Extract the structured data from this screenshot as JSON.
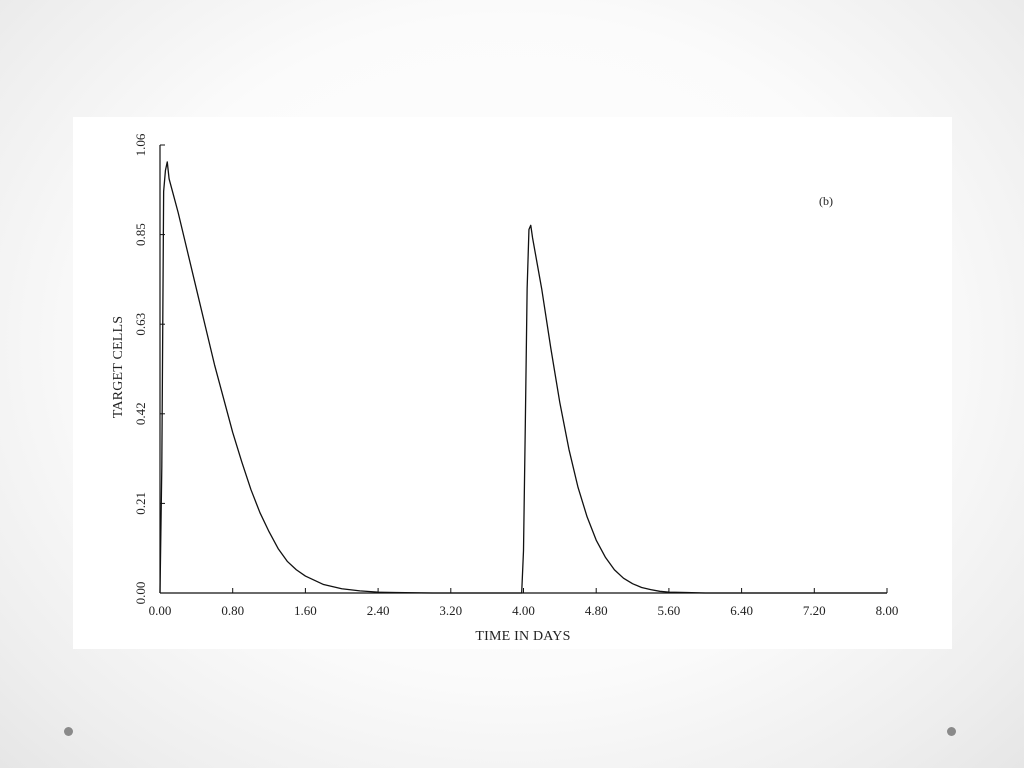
{
  "chart_data": {
    "type": "line",
    "panel_label": "(b)",
    "xlabel": "TIME IN DAYS",
    "ylabel": "TARGET CELLS",
    "xlim": [
      0,
      8
    ],
    "ylim": [
      0,
      1.06
    ],
    "x_ticks": [
      "0.00",
      "0.80",
      "1.60",
      "2.40",
      "3.20",
      "4.00",
      "4.80",
      "5.60",
      "6.40",
      "7.20",
      "8.00"
    ],
    "y_ticks": [
      "0.00",
      "0.21",
      "0.42",
      "0.63",
      "0.85",
      "1.06"
    ],
    "grid": false,
    "legend": "none",
    "series": [
      {
        "x": [
          0.0,
          0.02,
          0.04,
          0.06,
          0.08,
          0.1,
          0.15,
          0.2,
          0.3,
          0.4,
          0.5,
          0.6,
          0.7,
          0.8,
          0.9,
          1.0,
          1.1,
          1.2,
          1.3,
          1.4,
          1.5,
          1.6,
          1.8,
          2.0,
          2.2,
          2.4,
          2.6,
          3.0,
          3.5,
          3.98,
          4.0,
          4.02,
          4.04,
          4.06,
          4.08,
          4.1,
          4.15,
          4.2,
          4.3,
          4.4,
          4.5,
          4.6,
          4.7,
          4.8,
          4.9,
          5.0,
          5.1,
          5.2,
          5.3,
          5.4,
          5.5,
          5.6,
          5.8,
          6.0,
          7.0,
          8.0
        ],
        "y": [
          0.0,
          0.3,
          0.95,
          1.0,
          1.02,
          0.98,
          0.94,
          0.9,
          0.81,
          0.72,
          0.63,
          0.54,
          0.46,
          0.38,
          0.31,
          0.245,
          0.19,
          0.145,
          0.105,
          0.075,
          0.055,
          0.04,
          0.02,
          0.01,
          0.005,
          0.002,
          0.001,
          0.0,
          0.0,
          0.0,
          0.1,
          0.4,
          0.72,
          0.86,
          0.87,
          0.84,
          0.78,
          0.72,
          0.58,
          0.45,
          0.34,
          0.25,
          0.18,
          0.125,
          0.085,
          0.055,
          0.035,
          0.022,
          0.013,
          0.008,
          0.004,
          0.002,
          0.001,
          0.0,
          0.0,
          0.0
        ]
      }
    ]
  }
}
